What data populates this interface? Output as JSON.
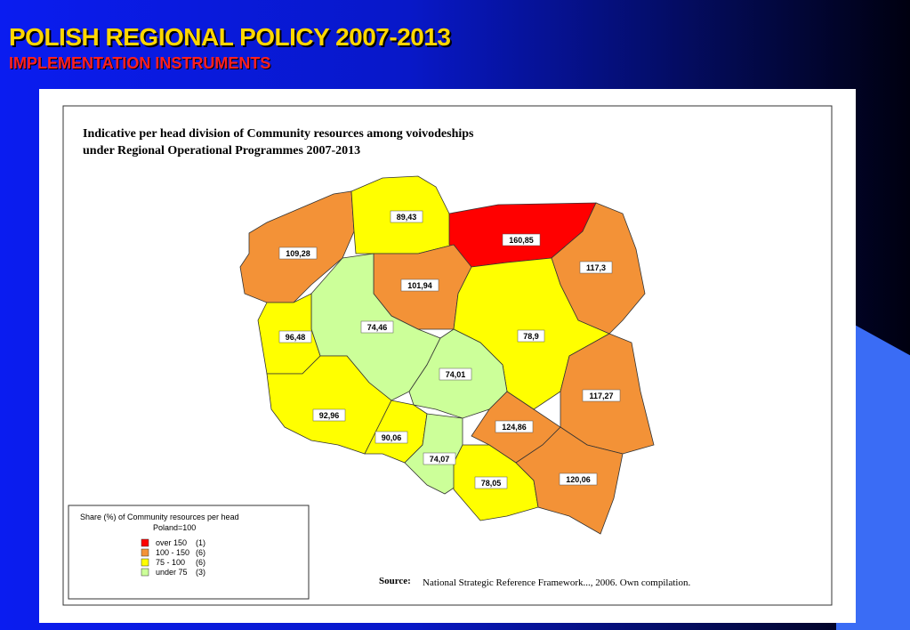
{
  "header": {
    "title": "POLISH REGIONAL POLICY 2007-2013",
    "subtitle": "IMPLEMENTATION INSTRUMENTS"
  },
  "map": {
    "title_line1": "Indicative per head division of Community resources among voivodeships",
    "title_line2": "under Regional Operational Programmes 2007-2013",
    "regions": [
      {
        "label": "109,28",
        "color": "#f39237"
      },
      {
        "label": "89,43",
        "color": "#ffff00"
      },
      {
        "label": "160,85",
        "color": "#ff0000"
      },
      {
        "label": "117,3",
        "color": "#f39237"
      },
      {
        "label": "101,94",
        "color": "#f39237"
      },
      {
        "label": "74,46",
        "color": "#ccff99"
      },
      {
        "label": "96,48",
        "color": "#ffff00"
      },
      {
        "label": "78,9",
        "color": "#ffff00"
      },
      {
        "label": "74,01",
        "color": "#ccff99"
      },
      {
        "label": "117,27",
        "color": "#f39237"
      },
      {
        "label": "92,96",
        "color": "#ffff00"
      },
      {
        "label": "90,06",
        "color": "#ffff00"
      },
      {
        "label": "74,07",
        "color": "#ccff99"
      },
      {
        "label": "124,86",
        "color": "#f39237"
      },
      {
        "label": "78,05",
        "color": "#ffff00"
      },
      {
        "label": "120,06",
        "color": "#f39237"
      }
    ],
    "legend": {
      "title": "Share (%) of Community resources per head",
      "subtitle": "Poland=100",
      "items": [
        {
          "label": "over 150",
          "count": "(1)",
          "color": "#ff0000"
        },
        {
          "label": "100 - 150",
          "count": "(6)",
          "color": "#f39237"
        },
        {
          "label": "75 - 100",
          "count": "(6)",
          "color": "#ffff00"
        },
        {
          "label": "under 75",
          "count": "(3)",
          "color": "#ccff99"
        }
      ]
    },
    "source_label": "Source:",
    "source_text": "National Strategic Reference Framework..., 2006. Own compilation."
  }
}
